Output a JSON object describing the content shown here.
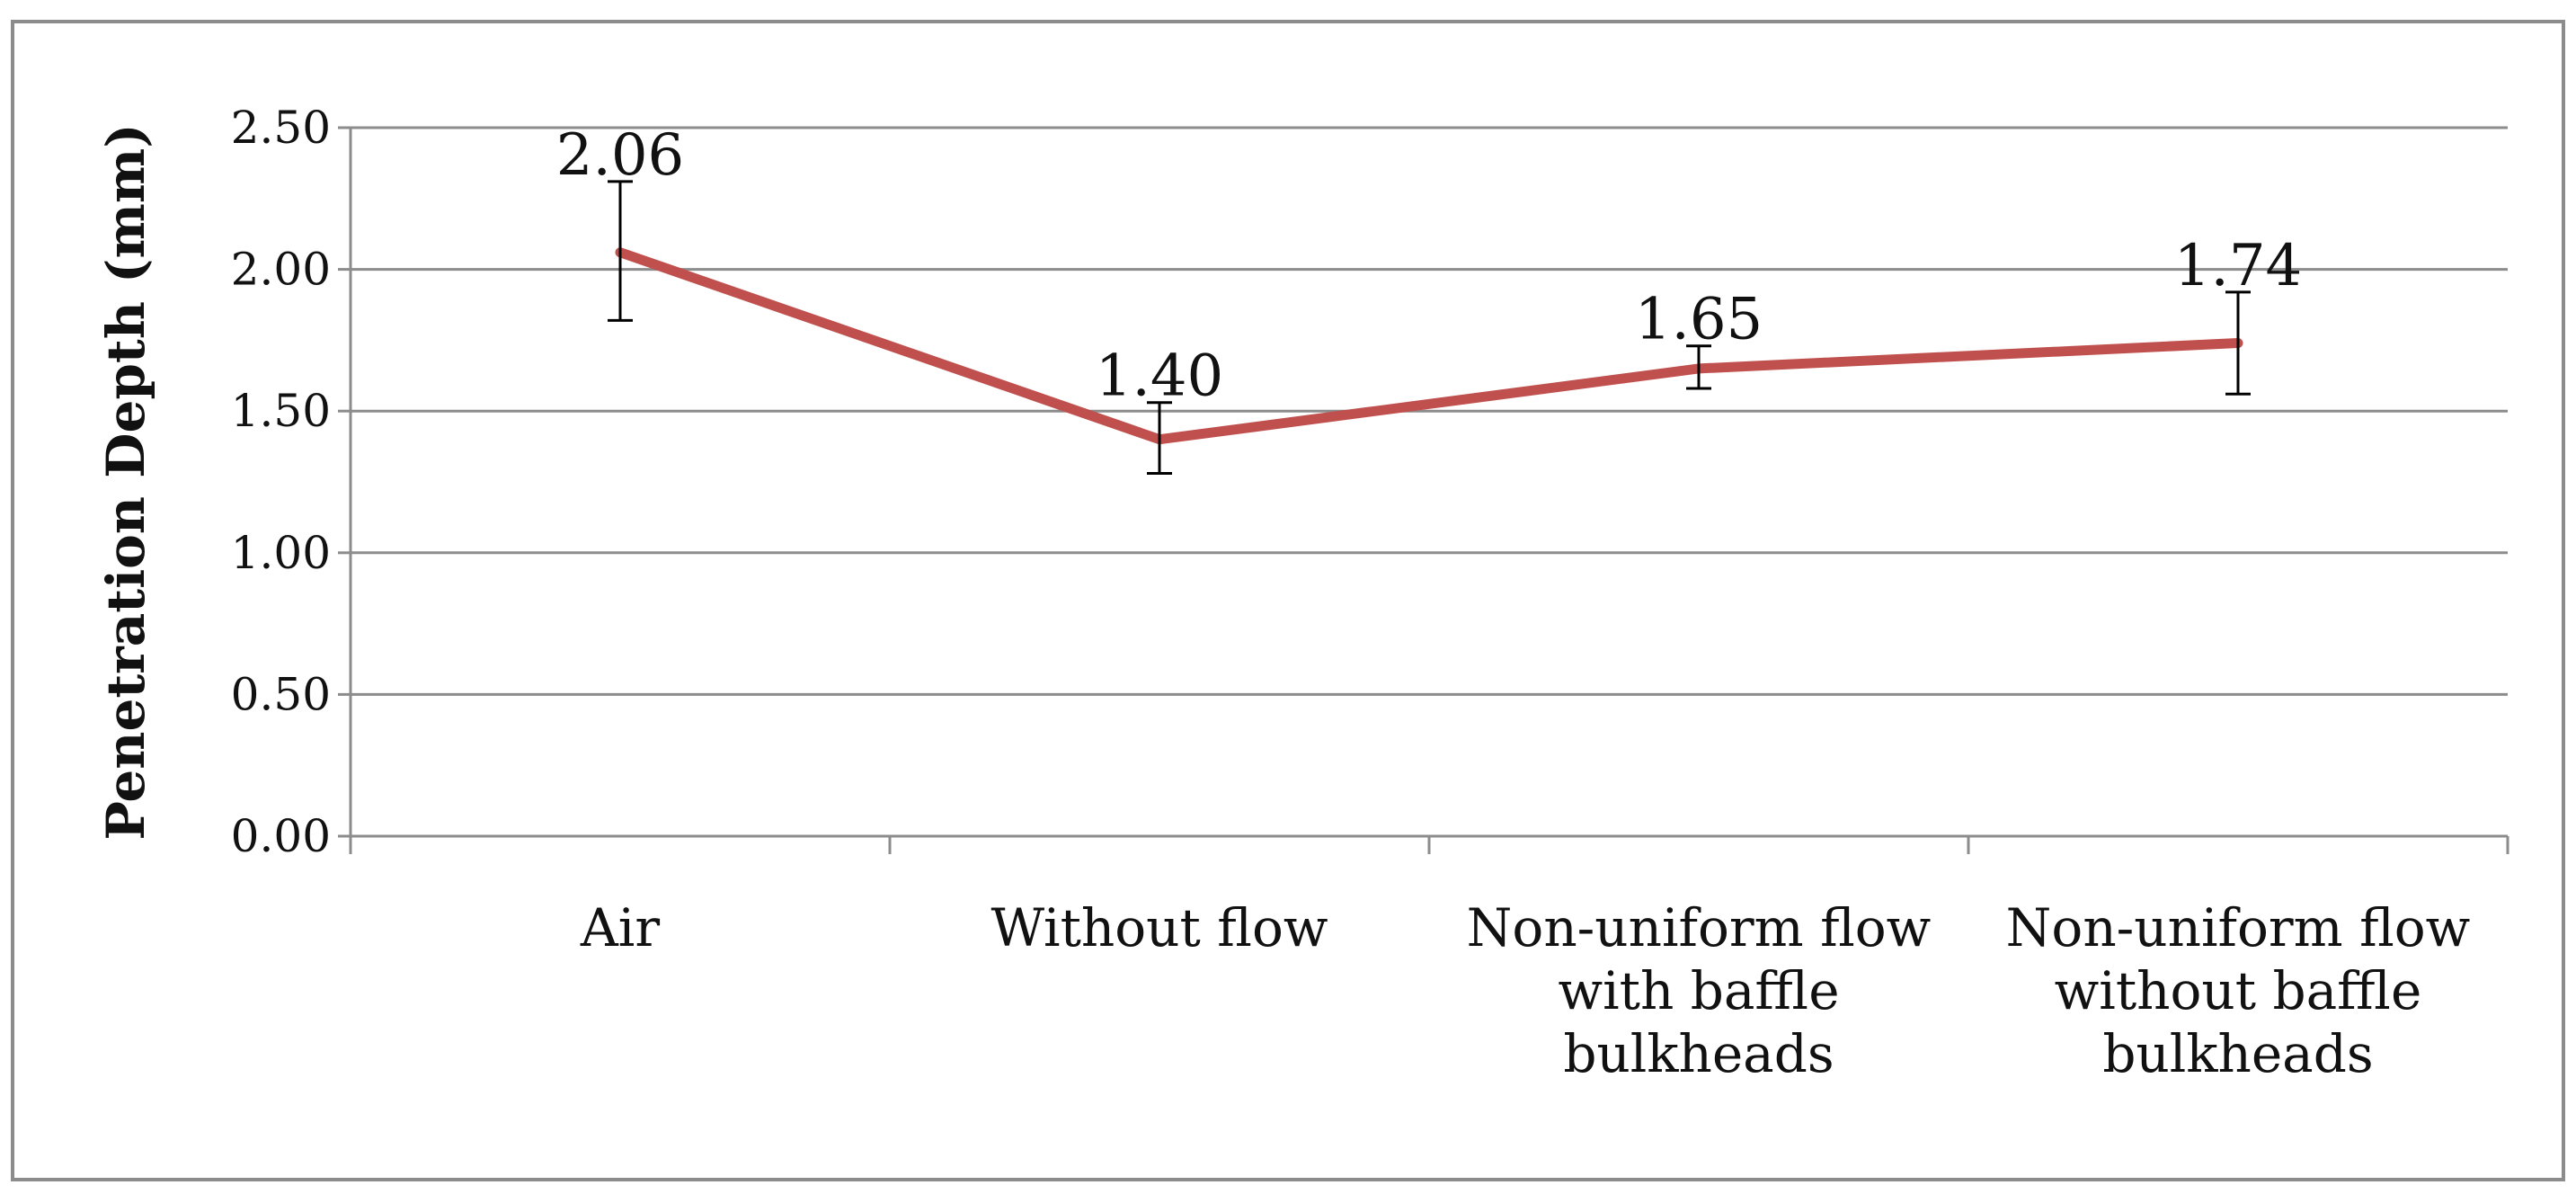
{
  "chart_data": {
    "type": "line",
    "title": "",
    "xlabel": "",
    "ylabel": "Penetration Depth (mm)",
    "ylim": [
      0,
      2.5
    ],
    "yticks": [
      "0.00",
      "0.50",
      "1.00",
      "1.50",
      "2.00",
      "2.50"
    ],
    "grid": true,
    "legend": "none",
    "line_color": "#c0504d",
    "categories": [
      [
        "Air"
      ],
      [
        "Without flow"
      ],
      [
        "Non-uniform flow",
        "with baffle",
        "bulkheads"
      ],
      [
        "Non-uniform flow",
        "without baffle",
        "bulkheads"
      ]
    ],
    "series": [
      {
        "values": [
          2.06,
          1.4,
          1.65,
          1.74
        ],
        "data_labels": [
          "2.06",
          "1.40",
          "1.65",
          "1.74"
        ],
        "error_low": [
          1.82,
          1.28,
          1.58,
          1.56
        ],
        "error_high": [
          2.31,
          1.53,
          1.73,
          1.92
        ]
      }
    ]
  }
}
